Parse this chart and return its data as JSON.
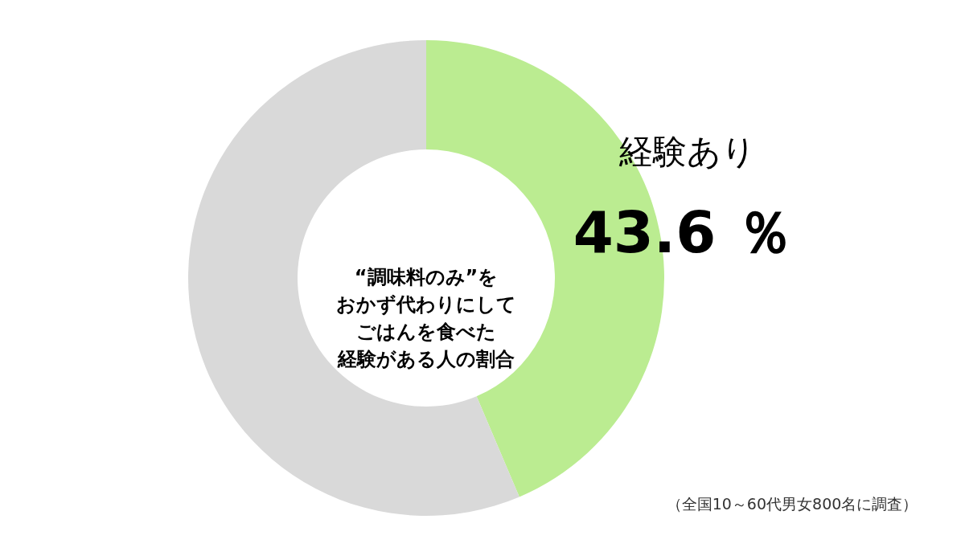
{
  "chart_data": {
    "type": "donut",
    "title": "“調味料のみ”をおかず代わりにしてごはんを食べた経験がある人の割合",
    "categories": [
      "経験あり",
      null
    ],
    "values": [
      43.6,
      56.4
    ],
    "colors": [
      "#bbec91",
      "#d9d9d9"
    ],
    "value_labels": [
      "43.6 ％",
      null
    ],
    "annotations": [
      "（全国10～60代男女800名に調査）"
    ]
  }
}
